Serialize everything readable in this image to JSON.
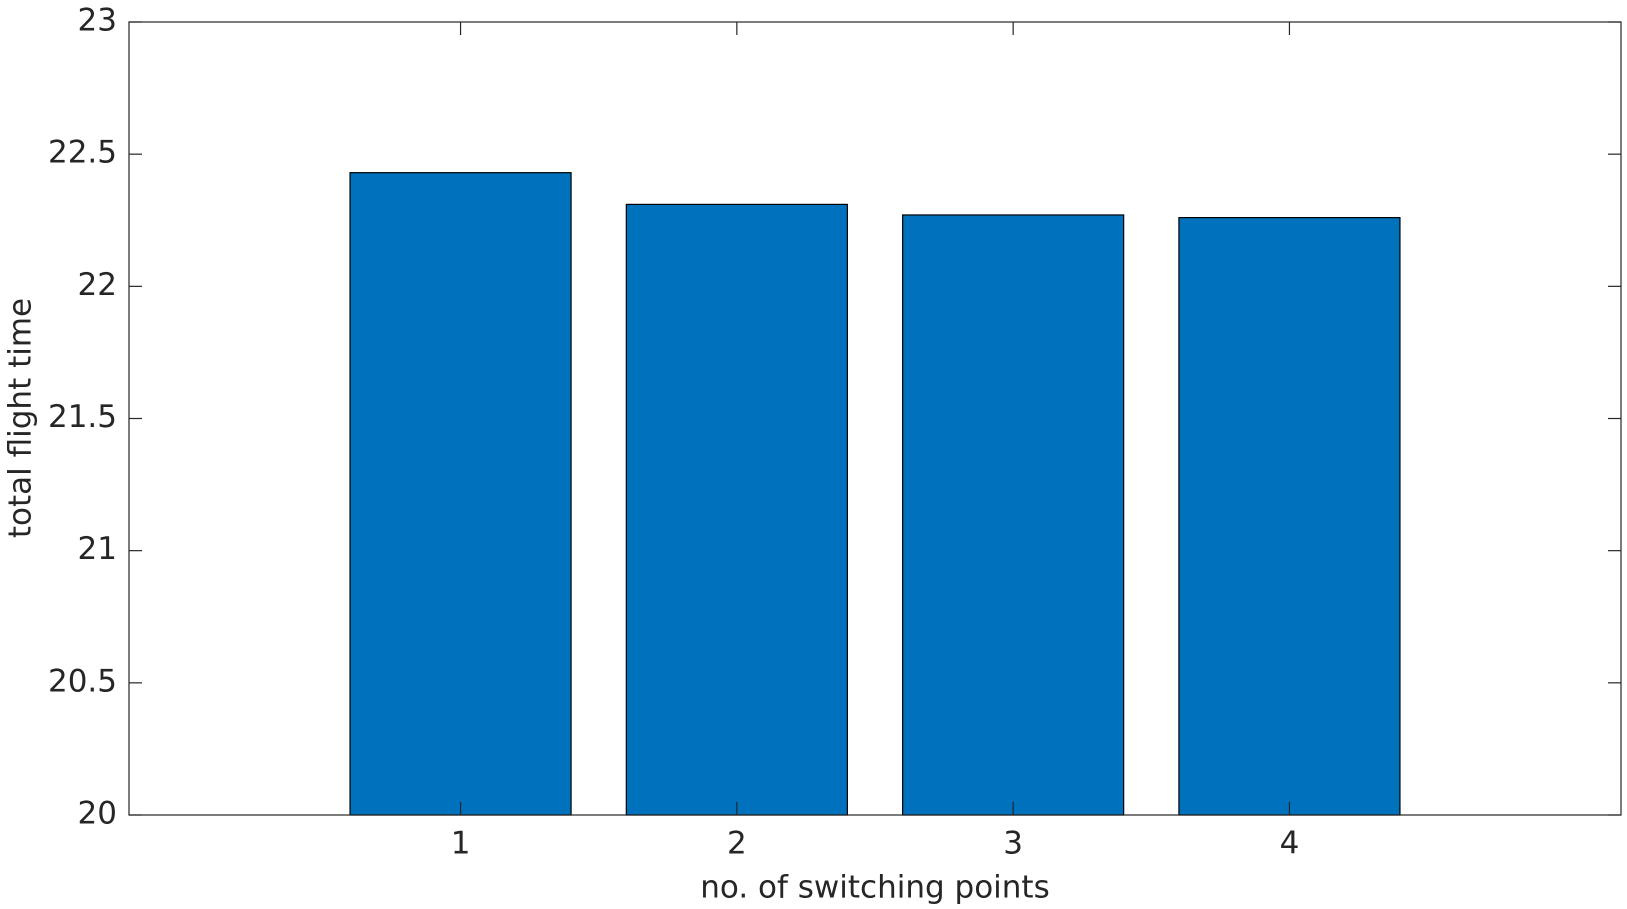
{
  "chart_data": {
    "type": "bar",
    "x": [
      1,
      2,
      3,
      4
    ],
    "values": [
      22.43,
      22.31,
      22.27,
      22.26
    ],
    "color": "#0072bd",
    "bar_width": 0.8,
    "xlim": [
      -0.2,
      5.2
    ],
    "xticks": [
      1,
      2,
      3,
      4
    ],
    "ylim": [
      20,
      23
    ],
    "yticks": [
      20,
      20.5,
      21,
      21.5,
      22,
      22.5,
      23
    ],
    "xlabel": "no. of switching points",
    "ylabel": "total flight time",
    "grid": false
  }
}
